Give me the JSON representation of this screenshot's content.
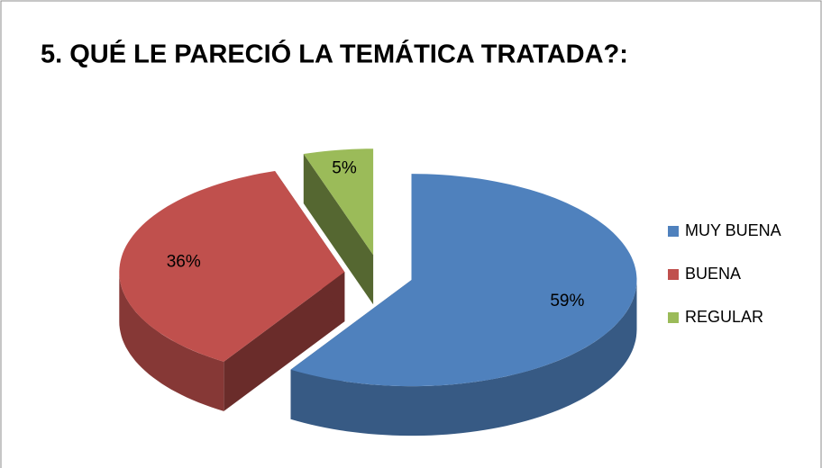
{
  "chart_data": {
    "type": "pie",
    "title": "5. QUÉ LE PARECIÓ LA TEMÁTICA TRATADA?:",
    "categories": [
      "MUY BUENA",
      "BUENA",
      "REGULAR"
    ],
    "values": [
      59,
      36,
      5
    ],
    "value_labels": [
      "59%",
      "36%",
      "5%"
    ],
    "colors": [
      "#4f81bd",
      "#c0504d",
      "#9bbb59"
    ],
    "legend": "right",
    "three_d": true,
    "exploded": true
  }
}
